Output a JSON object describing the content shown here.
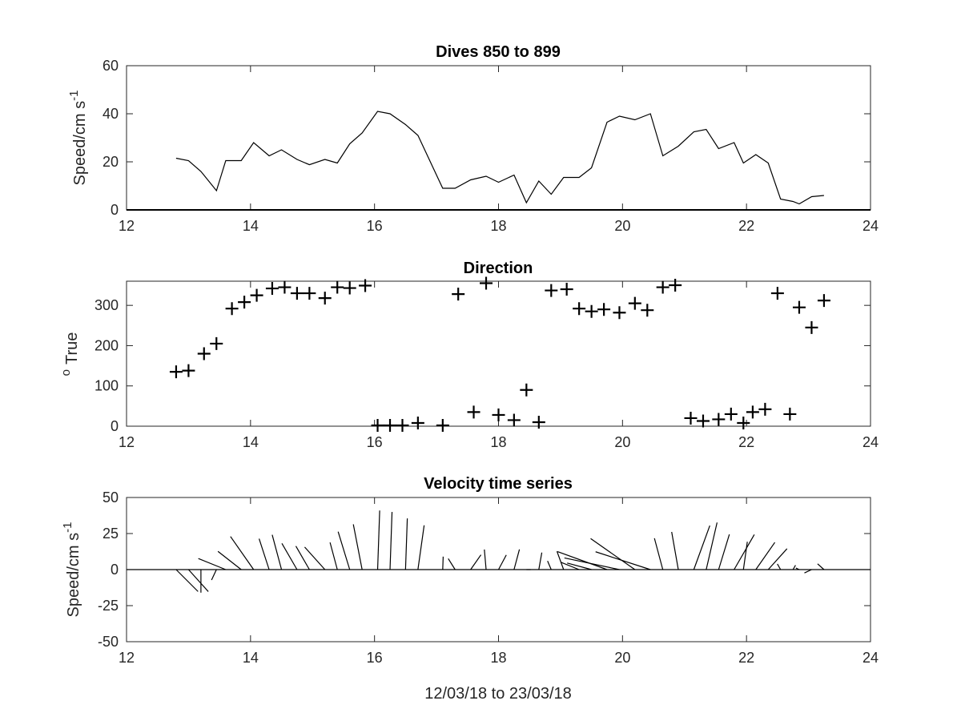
{
  "chart_data": [
    {
      "type": "line",
      "title": "Dives 850 to 899",
      "xlabel": "",
      "ylabel": "Speed/cm s",
      "ylabel_superscript": "-1",
      "xlim": [
        12,
        24
      ],
      "ylim": [
        0,
        60
      ],
      "xticks": [
        12,
        14,
        16,
        18,
        20,
        22,
        24
      ],
      "yticks": [
        0,
        20,
        40,
        60
      ],
      "grid": false,
      "color": "#000000",
      "series": [
        {
          "x": [
            12.8,
            13.0,
            13.2,
            13.45,
            13.6,
            13.85,
            14.05,
            14.3,
            14.5,
            14.75,
            14.95,
            15.2,
            15.4,
            15.6,
            15.8,
            16.05,
            16.25,
            16.5,
            16.7,
            17.1,
            17.3,
            17.55,
            17.8,
            18.0,
            18.25,
            18.45,
            18.65,
            18.85,
            19.05,
            19.3,
            19.5,
            19.75,
            19.95,
            20.2,
            20.45,
            20.65,
            20.9,
            21.15,
            21.35,
            21.55,
            21.8,
            21.95,
            22.15,
            22.35,
            22.55,
            22.75,
            22.85,
            23.05,
            23.25
          ],
          "y": [
            21.5,
            20.5,
            16,
            8,
            20.5,
            20.5,
            28,
            22.5,
            25,
            21,
            18.8,
            21,
            19.5,
            27.5,
            32,
            41,
            40,
            35.5,
            31,
            9,
            9,
            12.5,
            14,
            11.5,
            14.5,
            3,
            12,
            6.5,
            13.5,
            13.5,
            17.5,
            36.5,
            39,
            37.5,
            40,
            22.5,
            26.5,
            32.5,
            33.5,
            25.5,
            28,
            19.5,
            23,
            19.5,
            4.5,
            3.5,
            2.5,
            5.5,
            6
          ]
        }
      ]
    },
    {
      "type": "scatter",
      "title": "Direction",
      "xlabel": "",
      "ylabel": "True",
      "ylabel_superscript": "o",
      "xlim": [
        12,
        24
      ],
      "ylim": [
        0,
        360
      ],
      "xticks": [
        12,
        14,
        16,
        18,
        20,
        22,
        24
      ],
      "yticks": [
        0,
        100,
        200,
        300
      ],
      "marker": "+",
      "grid": false,
      "series": [
        {
          "x": [
            12.8,
            13.0,
            13.25,
            13.45,
            13.7,
            13.9,
            14.1,
            14.35,
            14.55,
            14.75,
            14.95,
            15.2,
            15.4,
            15.6,
            15.85,
            16.05,
            16.25,
            16.45,
            16.7,
            17.1,
            17.35,
            17.6,
            17.8,
            18.0,
            18.25,
            18.45,
            18.65,
            18.85,
            19.1,
            19.3,
            19.5,
            19.7,
            19.95,
            20.2,
            20.4,
            20.65,
            20.85,
            21.1,
            21.3,
            21.55,
            21.75,
            21.95,
            22.1,
            22.3,
            22.5,
            22.7,
            22.85,
            23.05,
            23.25
          ],
          "y": [
            135,
            138,
            180,
            205,
            292,
            308,
            325,
            342,
            345,
            330,
            330,
            318,
            345,
            343,
            349,
            2,
            2,
            2,
            8,
            2,
            328,
            35,
            355,
            28,
            15,
            90,
            10,
            337,
            340,
            292,
            285,
            290,
            282,
            305,
            288,
            345,
            350,
            20,
            13,
            17,
            30,
            8,
            35,
            42,
            330,
            30,
            295,
            245,
            312
          ]
        }
      ]
    },
    {
      "type": "stickplot",
      "title": "Velocity time series",
      "xlabel": "12/03/18 to 23/03/18",
      "ylabel": "Speed/cm s",
      "ylabel_superscript": "-1",
      "xlim": [
        12,
        24
      ],
      "ylim": [
        -50,
        50
      ],
      "xticks": [
        12,
        14,
        16,
        18,
        20,
        22,
        24
      ],
      "yticks": [
        50,
        25,
        0,
        -25,
        -50
      ],
      "zero_line": true,
      "grid": false,
      "note": "Each stick starts at (time, 0) and points along the current vector (speed, direction).",
      "series": [
        {
          "t": [
            12.8,
            13.0,
            13.2,
            13.45,
            13.6,
            13.85,
            14.05,
            14.3,
            14.5,
            14.75,
            14.95,
            15.2,
            15.4,
            15.6,
            15.8,
            16.05,
            16.25,
            16.5,
            16.7,
            17.1,
            17.3,
            17.55,
            17.8,
            18.0,
            18.25,
            18.45,
            18.65,
            18.85,
            19.05,
            19.3,
            19.5,
            19.75,
            19.95,
            20.2,
            20.45,
            20.65,
            20.9,
            21.15,
            21.35,
            21.55,
            21.8,
            21.95,
            22.15,
            22.35,
            22.55,
            22.75,
            22.85,
            23.05,
            23.25
          ],
          "speed": [
            21.5,
            20.5,
            16,
            8,
            20.5,
            20.5,
            28,
            22.5,
            25,
            21,
            18.8,
            21,
            19.5,
            27.5,
            32,
            41,
            40,
            35.5,
            31,
            9,
            9,
            12.5,
            14,
            11.5,
            14.5,
            3,
            12,
            6.5,
            13.5,
            13.5,
            17.5,
            36.5,
            39,
            37.5,
            40,
            22.5,
            26.5,
            32.5,
            33.5,
            25.5,
            28,
            19.5,
            23,
            19.5,
            4.5,
            3.5,
            2.5,
            5.5,
            6
          ],
          "direction": [
            135,
            138,
            180,
            205,
            292,
            308,
            325,
            342,
            345,
            330,
            330,
            318,
            345,
            343,
            349,
            2,
            2,
            2,
            8,
            2,
            328,
            35,
            355,
            28,
            15,
            90,
            10,
            337,
            340,
            292,
            285,
            290,
            282,
            305,
            288,
            345,
            350,
            20,
            13,
            17,
            30,
            8,
            35,
            42,
            330,
            30,
            295,
            245,
            312
          ]
        }
      ]
    }
  ]
}
